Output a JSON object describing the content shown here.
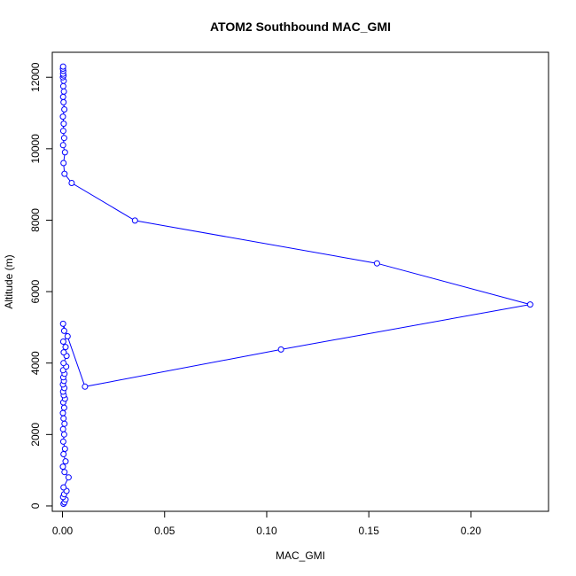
{
  "chart_data": {
    "type": "line",
    "title": "ATOM2 Southbound MAC_GMI",
    "xlabel": "MAC_GMI",
    "ylabel": "Altitude (m)",
    "xlim": [
      -0.005,
      0.238
    ],
    "ylim": [
      -150,
      12700
    ],
    "x_ticks": [
      0.0,
      0.05,
      0.1,
      0.15,
      0.2
    ],
    "x_tick_labels": [
      "0.00",
      "0.05",
      "0.10",
      "0.15",
      "0.20"
    ],
    "y_ticks": [
      0,
      2000,
      4000,
      6000,
      8000,
      10000,
      12000
    ],
    "y_tick_labels": [
      "0",
      "2000",
      "4000",
      "6000",
      "8000",
      "10000",
      "12000"
    ],
    "grid": false,
    "series_color": "#0000ff",
    "series": [
      {
        "x": [
          0.0005,
          0.001,
          0.0015,
          0.0003,
          0.0008,
          0.002,
          0.0005,
          0.003,
          0.001,
          0.0002,
          0.0015,
          0.0005,
          0.0012,
          0.0004,
          0.0008,
          0.0003,
          0.001,
          0.0005,
          0.0002,
          0.0008,
          0.0004,
          0.0012,
          0.0006,
          0.0003,
          0.0009,
          0.0002,
          0.0007,
          0.0004,
          0.001,
          0.0003,
          0.0018,
          0.0005,
          0.002,
          0.0006,
          0.0015,
          0.0004,
          0.0025,
          0.0008,
          0.0003,
          0.011,
          0.107,
          0.229,
          0.154,
          0.0355,
          0.0045,
          0.001,
          0.0005,
          0.0012,
          0.0003,
          0.0008,
          0.0004,
          0.0006,
          0.0002,
          0.0009,
          0.0005,
          0.0003,
          0.0007,
          0.0004,
          0.0006,
          0.0002,
          0.0005,
          0.0003,
          0.0004,
          0.0002,
          0.0003
        ],
        "y": [
          60,
          100,
          180,
          250,
          330,
          420,
          520,
          800,
          950,
          1100,
          1250,
          1450,
          1600,
          1800,
          2000,
          2150,
          2300,
          2450,
          2600,
          2750,
          2900,
          3000,
          3100,
          3200,
          3300,
          3400,
          3500,
          3600,
          3700,
          3800,
          3900,
          4000,
          4200,
          4300,
          4450,
          4600,
          4750,
          4900,
          5100,
          3340,
          4380,
          5640,
          6790,
          7990,
          9040,
          9300,
          9600,
          9900,
          10100,
          10300,
          10500,
          10700,
          10900,
          11100,
          11300,
          11450,
          11600,
          11750,
          11900,
          12000,
          12050,
          12100,
          12180,
          12240,
          12300
        ]
      }
    ]
  }
}
